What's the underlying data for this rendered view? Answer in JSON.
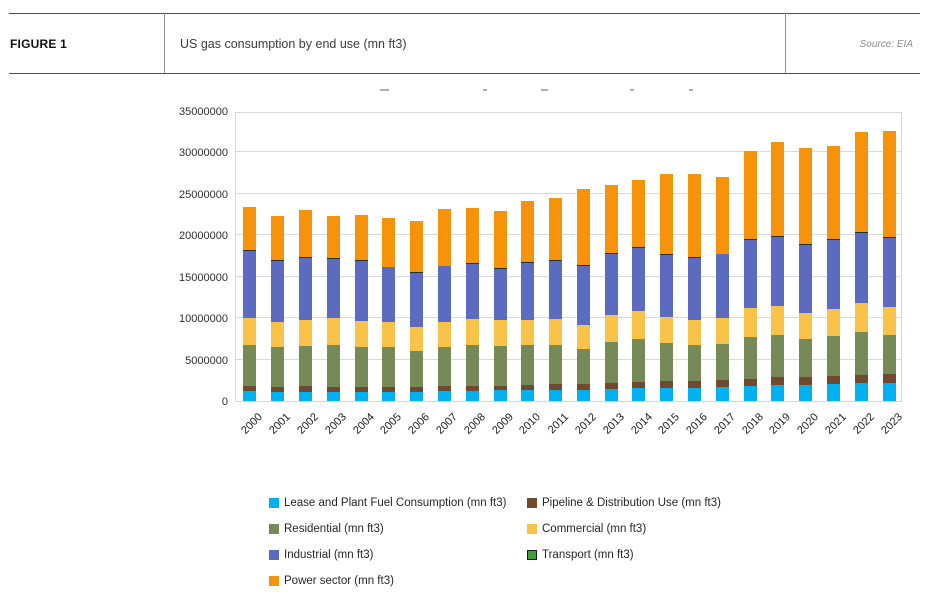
{
  "header": {
    "figure_label": "FIGURE 1",
    "title": "US gas consumption by end use (mn ft3)",
    "source": "Source: EIA"
  },
  "chart_data": {
    "type": "bar",
    "stacked": true,
    "title": "US gas consumption by end use (mn ft3)",
    "xlabel": "",
    "ylabel": "",
    "ylim": [
      0,
      35000000
    ],
    "ytick_interval": 5000000,
    "yticks": [
      "0",
      "5000000",
      "10000000",
      "15000000",
      "20000000",
      "25000000",
      "30000000",
      "35000000"
    ],
    "grid": true,
    "legend_position": "bottom",
    "categories": [
      "2000",
      "2001",
      "2002",
      "2003",
      "2004",
      "2005",
      "2006",
      "2007",
      "2008",
      "2009",
      "2010",
      "2011",
      "2012",
      "2013",
      "2014",
      "2015",
      "2016",
      "2017",
      "2018",
      "2019",
      "2020",
      "2021",
      "2022",
      "2023"
    ],
    "series": [
      {
        "name": "Lease and Plant Fuel Consumption (mn ft3)",
        "color": "#00B0F0",
        "values": [
          1151000,
          1119000,
          1113000,
          1122000,
          1098000,
          1112000,
          1142000,
          1226000,
          1220000,
          1275000,
          1286000,
          1323000,
          1347000,
          1399000,
          1515000,
          1567000,
          1550000,
          1639000,
          1776000,
          1958000,
          1941000,
          2051000,
          2157000,
          2215000
        ]
      },
      {
        "name": "Pipeline & Distribution Use (mn ft3)",
        "color": "#70492F",
        "values": [
          642000,
          625000,
          667000,
          591000,
          566000,
          584000,
          584000,
          621000,
          648000,
          596000,
          659000,
          684000,
          727000,
          789000,
          837000,
          833000,
          828000,
          853000,
          939000,
          975000,
          922000,
          966000,
          1030000,
          1048000
        ]
      },
      {
        "name": "Residential (mn ft3)",
        "color": "#768A58",
        "values": [
          4996000,
          4771000,
          4889000,
          5079000,
          4869000,
          4827000,
          4368000,
          4722000,
          4892000,
          4779000,
          4782000,
          4714000,
          4150000,
          4897000,
          5086000,
          4612000,
          4346000,
          4412000,
          4996000,
          5015000,
          4649000,
          4776000,
          5112000,
          4658000
        ]
      },
      {
        "name": "Commercial (mn ft3)",
        "color": "#F9C349",
        "values": [
          3182000,
          3023000,
          3144000,
          3179000,
          3129000,
          2999000,
          2832000,
          3013000,
          3153000,
          3119000,
          3103000,
          3155000,
          2895000,
          3293000,
          3467000,
          3162000,
          3108000,
          3159000,
          3514000,
          3532000,
          3153000,
          3310000,
          3581000,
          3414000
        ]
      },
      {
        "name": "Industrial (mn ft3)",
        "color": "#5B6BC0",
        "values": [
          8142000,
          7344000,
          7507000,
          7150000,
          7243000,
          6597000,
          6512000,
          6655000,
          6661000,
          6167000,
          6826000,
          6994000,
          7225000,
          7388000,
          7541000,
          7472000,
          7468000,
          7631000,
          8213000,
          8367000,
          8137000,
          8294000,
          8421000,
          8373000
        ]
      },
      {
        "name": "Transport (mn ft3)",
        "color": "#3FA033",
        "render_color": "#223329",
        "swatch_border": "#1a1a1a",
        "values": [
          13000,
          14000,
          15000,
          18000,
          22000,
          23000,
          24000,
          25000,
          26000,
          27000,
          29000,
          31000,
          33000,
          35000,
          37000,
          39000,
          43000,
          46000,
          50000,
          53000,
          52000,
          55000,
          58000,
          62000
        ]
      },
      {
        "name": "Power sector (mn ft3)",
        "color": "#F7920B",
        "values": [
          5206000,
          5343000,
          5672000,
          5135000,
          5464000,
          5869000,
          6222000,
          6841000,
          6668000,
          6873000,
          7387000,
          7574000,
          9111000,
          8159000,
          8157000,
          9658000,
          9987000,
          9250000,
          10580000,
          11287000,
          11620000,
          11273000,
          12034000,
          12730000
        ]
      }
    ]
  }
}
